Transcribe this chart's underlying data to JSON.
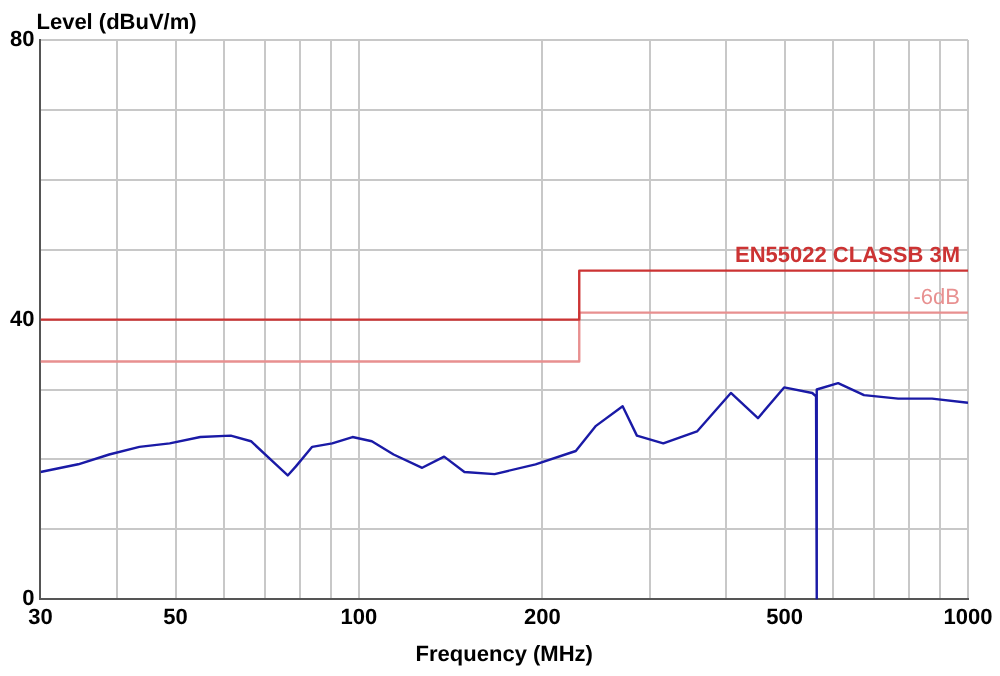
{
  "chart_data": {
    "type": "line",
    "xlabel": "Frequency (MHz)",
    "ylabel": "Level (dBuV/m)",
    "log": "x",
    "xlim": [
      30,
      1000
    ],
    "ylim": [
      0,
      80
    ],
    "xticks": [
      30,
      {
        "value": 40,
        "label": null
      },
      50,
      {
        "value": 60,
        "label": null
      },
      {
        "value": 70,
        "label": null
      },
      {
        "value": 80,
        "label": null
      },
      {
        "value": 90,
        "label": null
      },
      100,
      200,
      {
        "value": 300,
        "label": null
      },
      {
        "value": 400,
        "label": null
      },
      500,
      {
        "value": 600,
        "label": null
      },
      {
        "value": 700,
        "label": null
      },
      {
        "value": 800,
        "label": null
      },
      {
        "value": 900,
        "label": null
      },
      1000
    ],
    "yticks": [
      0,
      {
        "value": 10,
        "label": null
      },
      {
        "value": 20,
        "label": null
      },
      {
        "value": 30,
        "label": null
      },
      40,
      {
        "value": 50,
        "label": null
      },
      {
        "value": 60,
        "label": null
      },
      {
        "value": 70,
        "label": null
      },
      80
    ],
    "grid": true,
    "legend": false,
    "marker": "none",
    "line_style": "solid",
    "series": [
      {
        "name": "EN55022 CLASSB 3M",
        "color": "#cc3333",
        "x": [
          30,
          230,
          230,
          1000
        ],
        "values": [
          40,
          40,
          47,
          47
        ]
      },
      {
        "name": "-6dB",
        "color": "#e89090",
        "x": [
          30,
          230,
          230,
          1000
        ],
        "values": [
          34,
          34,
          41,
          41
        ]
      },
      {
        "color": "#1a1aa6",
        "x": [
          30,
          34.6,
          38.9,
          43.6,
          48.9,
          54.9,
          61.6,
          66.5,
          71.8,
          76.4,
          78.8,
          83.8,
          90.4,
          97.6,
          105,
          114,
          127,
          138,
          149,
          167,
          195,
          227,
          245,
          271,
          286,
          316,
          359,
          408,
          452,
          499,
          555,
          563,
          564,
          565,
          612,
          675,
          768,
          873,
          1000
        ],
        "values": [
          18.2,
          19.3,
          20.7,
          21.8,
          22.3,
          23.2,
          23.4,
          22.6,
          19.9,
          17.7,
          19.0,
          21.8,
          22.3,
          23.2,
          22.6,
          20.7,
          18.8,
          20.4,
          18.2,
          17.9,
          19.3,
          21.2,
          24.8,
          27.6,
          23.4,
          22.3,
          24.0,
          29.5,
          25.9,
          30.3,
          29.5,
          29.0,
          0,
          30.0,
          30.9,
          29.2,
          28.7,
          28.7,
          28.1
        ]
      }
    ]
  }
}
